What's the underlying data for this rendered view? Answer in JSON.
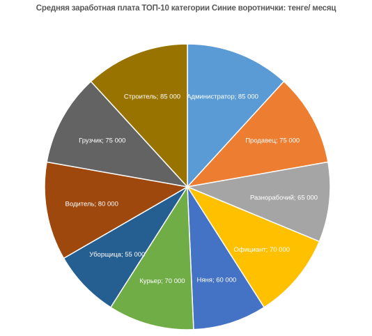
{
  "chart_data": {
    "type": "pie",
    "title": "Средняя заработная плата ТОП-10 категории Синие воротнички: тенге/ месяц",
    "slices": [
      {
        "label": "Администратор",
        "value": 85000,
        "display": "Администратор;  85 000",
        "color": "#5B9BD5"
      },
      {
        "label": "Продавец",
        "value": 75000,
        "display": "Продавец;  75 000",
        "color": "#ED7D31"
      },
      {
        "label": "Разнорабочий",
        "value": 65000,
        "display": "Разнорабочий;  65 000",
        "color": "#A5A5A5"
      },
      {
        "label": "Официант",
        "value": 70000,
        "display": "Официант;  70 000",
        "color": "#FFC000"
      },
      {
        "label": "Няня",
        "value": 60000,
        "display": "Няня;  60 000",
        "color": "#4472C4"
      },
      {
        "label": "Курьер",
        "value": 70000,
        "display": "Курьер;  70 000",
        "color": "#70AD47"
      },
      {
        "label": "Уборщица",
        "value": 55000,
        "display": "Уборщица;  55 000",
        "color": "#255E91"
      },
      {
        "label": "Водитель",
        "value": 80000,
        "display": "Водитель;  80 000",
        "color": "#9E480E"
      },
      {
        "label": "Грузчик",
        "value": 75000,
        "display": "Грузчик;  75 000",
        "color": "#636363"
      },
      {
        "label": "Строитель",
        "value": 85000,
        "display": "Строитель;  85 000",
        "color": "#997300"
      }
    ]
  }
}
